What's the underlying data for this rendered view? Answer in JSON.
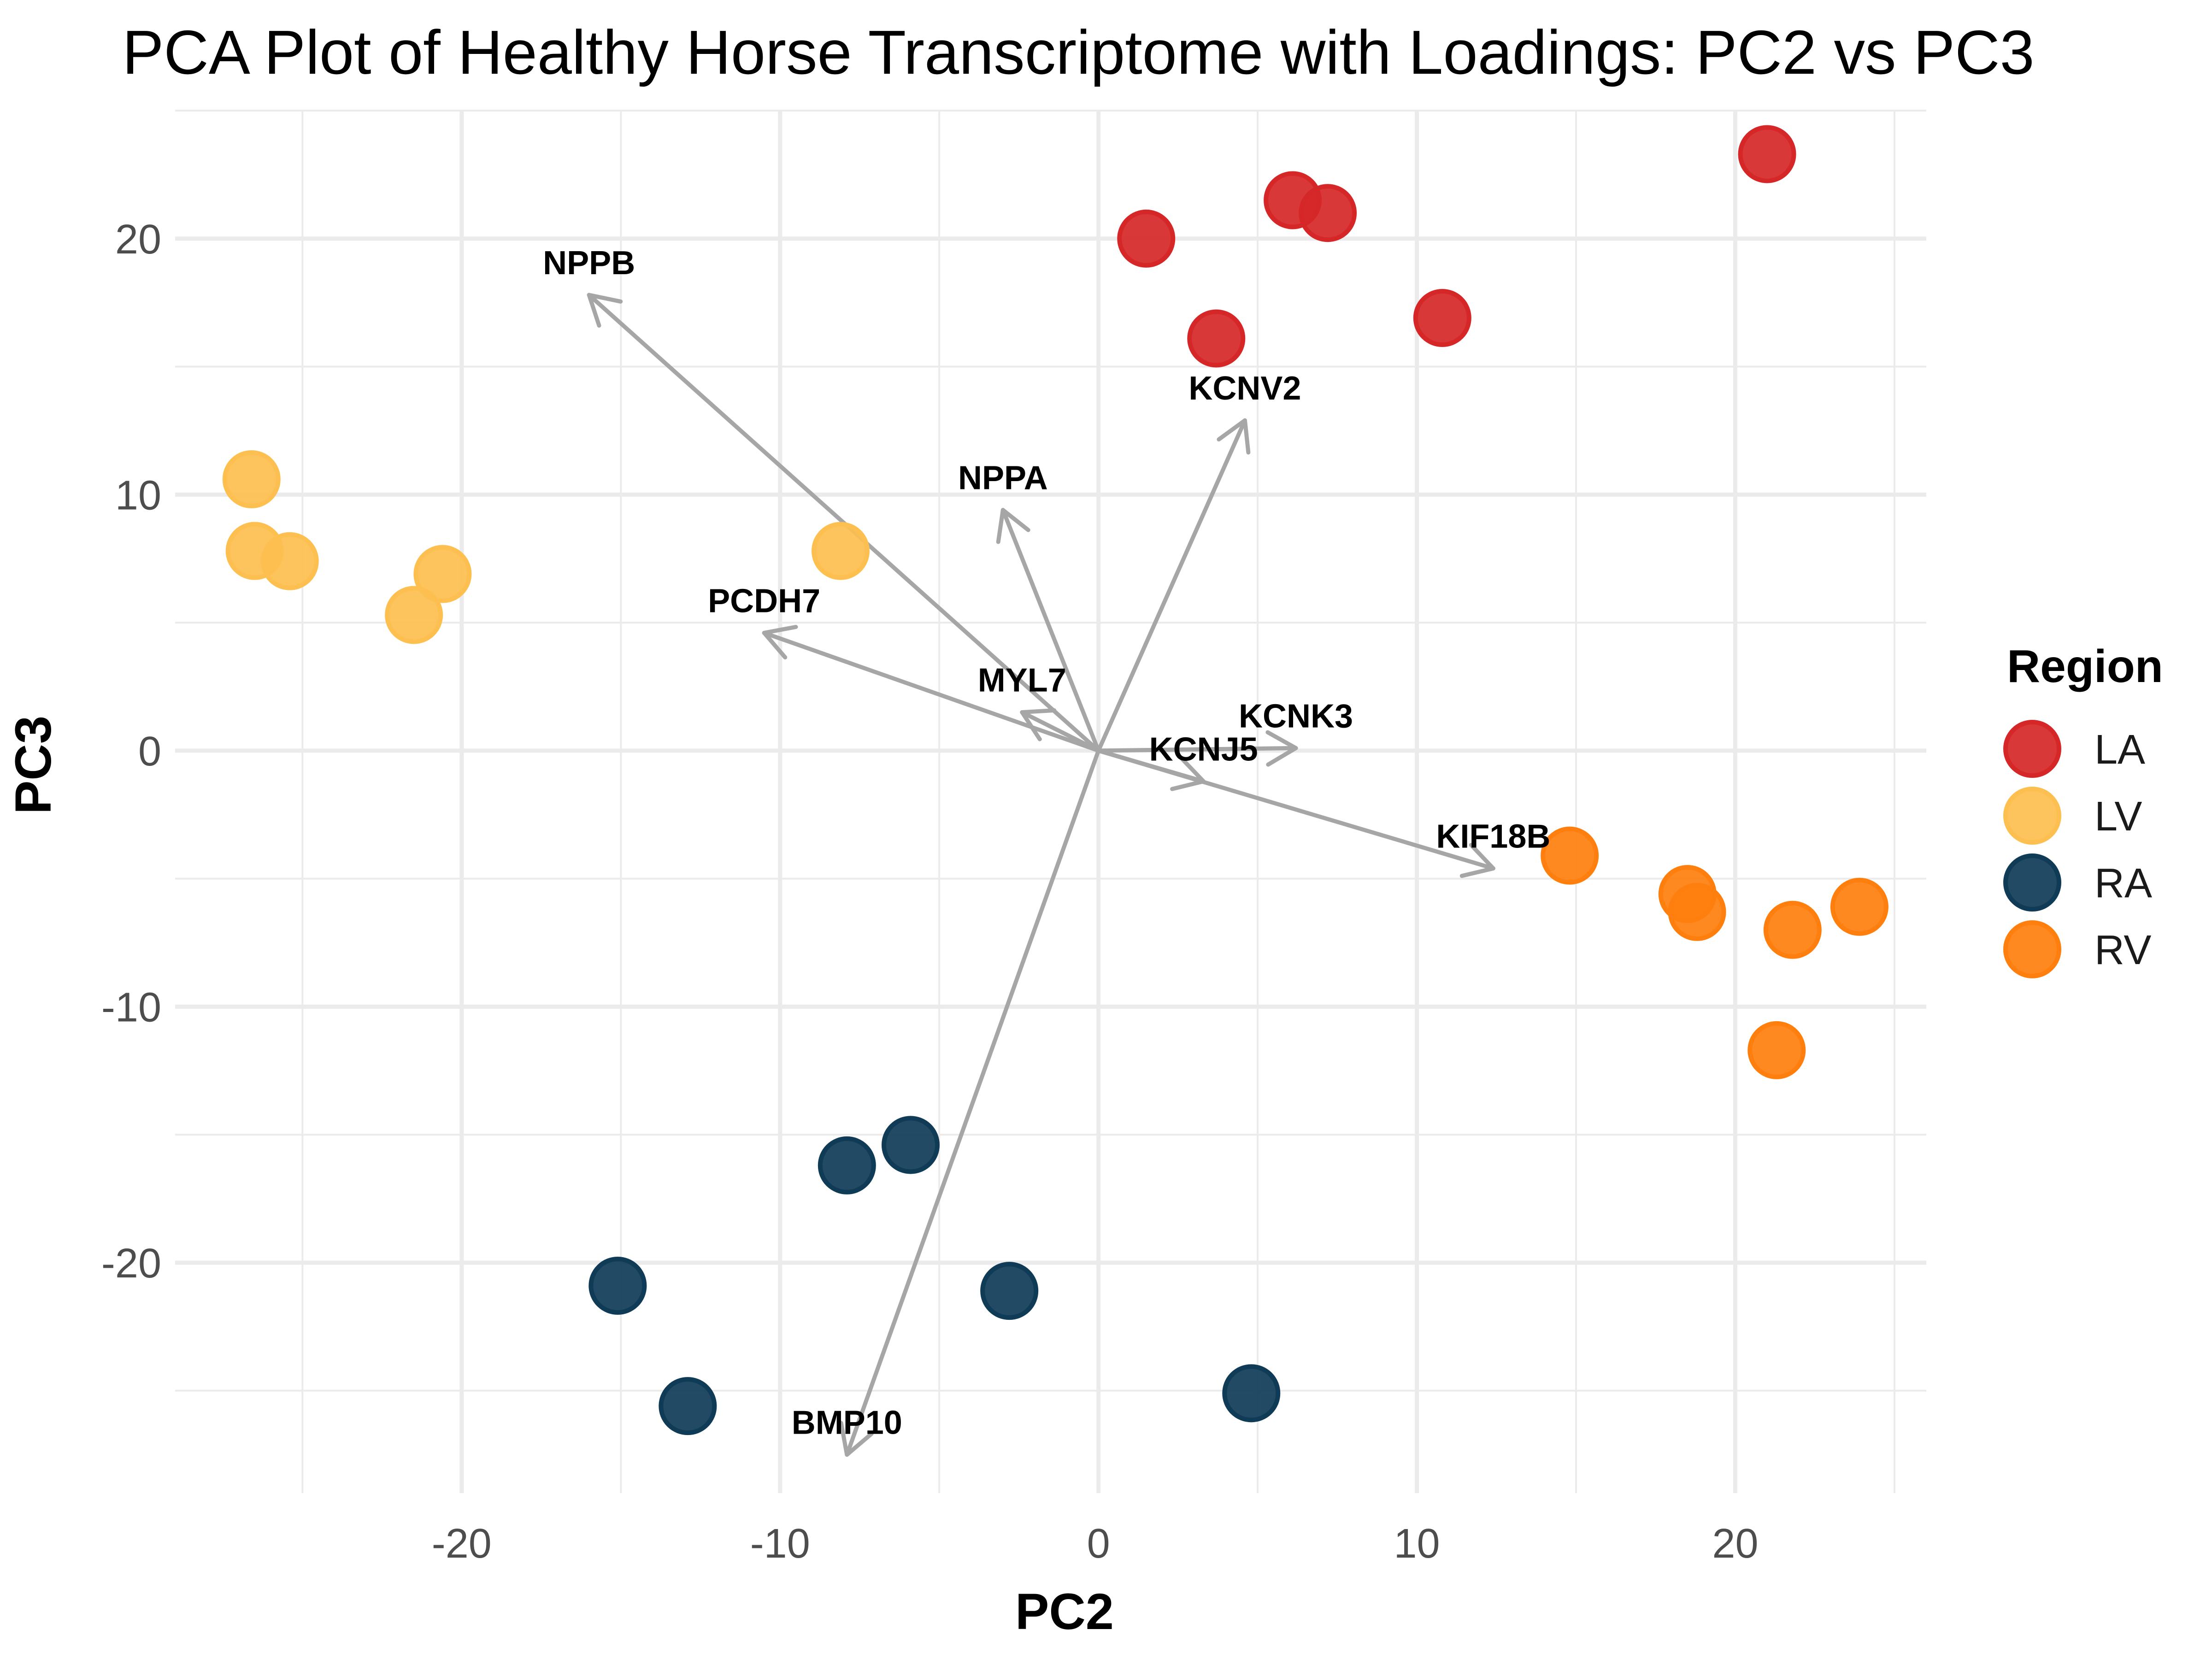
{
  "chart_data": {
    "type": "scatter",
    "title": "PCA Plot of Healthy Horse Transcriptome with Loadings: PC2 vs PC3",
    "xlabel": "PC2",
    "ylabel": "PC3",
    "xlim": [
      -29,
      26
    ],
    "ylim": [
      -29,
      25
    ],
    "x_ticks": [
      -20,
      -10,
      0,
      10,
      20
    ],
    "y_ticks": [
      20,
      10,
      0,
      -10,
      -20
    ],
    "grid": true,
    "legend": {
      "title": "Region",
      "position": "right"
    },
    "series": [
      {
        "name": "LA",
        "color": "#D62728",
        "points": [
          [
            1.5,
            20.0
          ],
          [
            6.1,
            21.5
          ],
          [
            7.2,
            21.0
          ],
          [
            21.0,
            23.3
          ],
          [
            3.7,
            16.1
          ],
          [
            10.8,
            16.9
          ]
        ]
      },
      {
        "name": "LV",
        "color": "#FDBF4F",
        "points": [
          [
            -26.6,
            10.6
          ],
          [
            -26.5,
            7.8
          ],
          [
            -25.4,
            7.4
          ],
          [
            -20.6,
            6.9
          ],
          [
            -21.5,
            5.3
          ],
          [
            -8.1,
            7.8
          ]
        ]
      },
      {
        "name": "RA",
        "color": "#0F3B57",
        "points": [
          [
            -7.9,
            -16.2
          ],
          [
            -5.9,
            -15.4
          ],
          [
            -15.1,
            -20.9
          ],
          [
            -2.8,
            -21.1
          ],
          [
            -12.9,
            -25.6
          ],
          [
            4.8,
            -25.1
          ]
        ]
      },
      {
        "name": "RV",
        "color": "#FF7F0E",
        "points": [
          [
            14.8,
            -4.1
          ],
          [
            18.5,
            -5.6
          ],
          [
            18.8,
            -6.3
          ],
          [
            21.8,
            -7.0
          ],
          [
            23.9,
            -6.1
          ],
          [
            21.3,
            -11.7
          ]
        ]
      }
    ],
    "loadings": [
      {
        "gene": "NPPB",
        "x": -16.0,
        "y": 17.8
      },
      {
        "gene": "KCNV2",
        "x": 4.6,
        "y": 12.9
      },
      {
        "gene": "NPPA",
        "x": -3.0,
        "y": 9.4
      },
      {
        "gene": "PCDH7",
        "x": -10.5,
        "y": 4.6
      },
      {
        "gene": "MYL7",
        "x": -2.4,
        "y": 1.5
      },
      {
        "gene": "KCNK3",
        "x": 6.2,
        "y": 0.1
      },
      {
        "gene": "KCNJ5",
        "x": 3.3,
        "y": -1.2
      },
      {
        "gene": "KIF18B",
        "x": 12.4,
        "y": -4.6
      },
      {
        "gene": "BMP10",
        "x": -7.9,
        "y": -27.5
      }
    ],
    "arrow_color": "#A6A6A6"
  }
}
